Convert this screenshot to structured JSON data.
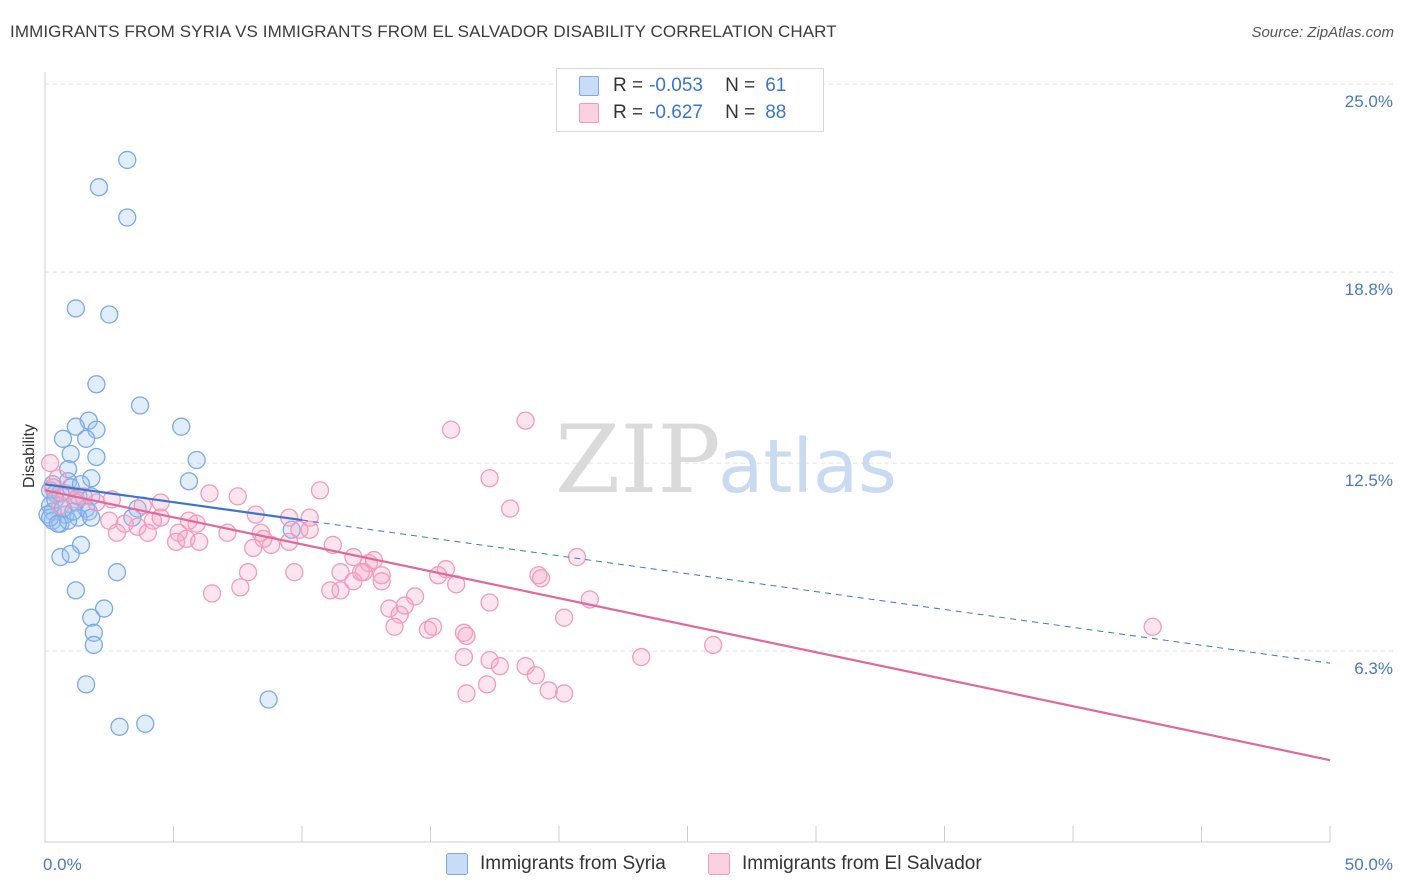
{
  "title": "IMMIGRANTS FROM SYRIA VS IMMIGRANTS FROM EL SALVADOR DISABILITY CORRELATION CHART",
  "source": "Source: ZipAtlas.com",
  "watermark": {
    "zip": "ZIP",
    "atlas": "atlas"
  },
  "legend": {
    "rows": [
      {
        "r_label": "R =",
        "r_value": "-0.053",
        "n_label": "N =",
        "n_value": "61",
        "color": "#7aaae8"
      },
      {
        "r_label": "R =",
        "r_value": "-0.627",
        "n_label": "N = ",
        "n_value": "88",
        "color": "#f19bbb"
      }
    ]
  },
  "chart_data": {
    "type": "scatter",
    "title": "IMMIGRANTS FROM SYRIA VS IMMIGRANTS FROM EL SALVADOR DISABILITY CORRELATION CHART",
    "xlabel": "",
    "ylabel": "Disability",
    "xlim": [
      0,
      50
    ],
    "ylim": [
      0,
      25.4
    ],
    "x_tick_labels": [
      "0.0%",
      "50.0%"
    ],
    "y_ticks": [
      6.3,
      12.5,
      18.8,
      25.0
    ],
    "y_tick_labels": [
      "6.3%",
      "12.5%",
      "18.8%",
      "25.0%"
    ],
    "grid": "horizontal dashed",
    "series": [
      {
        "name": "Immigrants from Syria",
        "color": "#7aaae8",
        "line_color": "#3b74d0",
        "trend": {
          "x0": 0,
          "y0": 11.8,
          "x1": 50,
          "y1": 5.9,
          "solid_until": 10
        },
        "points": [
          [
            3.2,
            22.5
          ],
          [
            2.1,
            21.6
          ],
          [
            3.2,
            20.6
          ],
          [
            1.2,
            17.6
          ],
          [
            2.5,
            17.4
          ],
          [
            2.0,
            15.1
          ],
          [
            3.7,
            14.4
          ],
          [
            1.7,
            13.9
          ],
          [
            1.2,
            13.7
          ],
          [
            2.0,
            13.6
          ],
          [
            5.3,
            13.7
          ],
          [
            0.7,
            13.3
          ],
          [
            1.6,
            13.3
          ],
          [
            1.0,
            12.8
          ],
          [
            2.0,
            12.7
          ],
          [
            5.9,
            12.6
          ],
          [
            0.9,
            12.3
          ],
          [
            1.8,
            12.0
          ],
          [
            5.6,
            11.9
          ],
          [
            0.3,
            11.8
          ],
          [
            0.9,
            11.9
          ],
          [
            1.0,
            11.7
          ],
          [
            0.2,
            11.6
          ],
          [
            0.4,
            11.5
          ],
          [
            1.3,
            11.4
          ],
          [
            1.8,
            11.4
          ],
          [
            0.6,
            11.5
          ],
          [
            1.2,
            11.2
          ],
          [
            0.2,
            11.1
          ],
          [
            1.6,
            11.0
          ],
          [
            3.6,
            11.0
          ],
          [
            0.3,
            10.9
          ],
          [
            0.8,
            10.8
          ],
          [
            1.7,
            10.9
          ],
          [
            0.1,
            10.8
          ],
          [
            0.3,
            10.6
          ],
          [
            1.3,
            10.7
          ],
          [
            1.8,
            10.7
          ],
          [
            0.6,
            10.5
          ],
          [
            0.9,
            10.6
          ],
          [
            0.2,
            10.7
          ],
          [
            0.5,
            10.5
          ],
          [
            3.4,
            10.7
          ],
          [
            9.6,
            10.3
          ],
          [
            1.4,
            9.8
          ],
          [
            0.6,
            9.4
          ],
          [
            1.0,
            9.5
          ],
          [
            2.8,
            8.9
          ],
          [
            1.2,
            8.3
          ],
          [
            2.3,
            7.7
          ],
          [
            1.8,
            7.4
          ],
          [
            1.9,
            6.9
          ],
          [
            1.9,
            6.5
          ],
          [
            1.6,
            5.2
          ],
          [
            8.7,
            4.7
          ],
          [
            3.9,
            3.9
          ],
          [
            2.9,
            3.8
          ],
          [
            0.4,
            11.3
          ],
          [
            1.4,
            11.8
          ],
          [
            0.7,
            11.0
          ],
          [
            1.1,
            10.9
          ]
        ]
      },
      {
        "name": "Immigrants from El Salvador",
        "color": "#f19bbb",
        "line_color": "#e0689a",
        "trend": {
          "x0": 0,
          "y0": 11.6,
          "x1": 50,
          "y1": 2.7
        },
        "points": [
          [
            0.2,
            12.5
          ],
          [
            0.5,
            12.0
          ],
          [
            0.3,
            11.7
          ],
          [
            0.8,
            11.5
          ],
          [
            1.2,
            11.3
          ],
          [
            1.5,
            11.4
          ],
          [
            2.0,
            11.2
          ],
          [
            0.6,
            11.1
          ],
          [
            2.6,
            11.3
          ],
          [
            3.8,
            11.1
          ],
          [
            4.5,
            11.2
          ],
          [
            6.4,
            11.5
          ],
          [
            7.5,
            11.4
          ],
          [
            10.7,
            11.6
          ],
          [
            8.2,
            10.8
          ],
          [
            9.5,
            10.7
          ],
          [
            10.3,
            10.7
          ],
          [
            5.6,
            10.6
          ],
          [
            4.2,
            10.6
          ],
          [
            3.6,
            10.4
          ],
          [
            2.5,
            10.6
          ],
          [
            3.1,
            10.5
          ],
          [
            4.5,
            10.7
          ],
          [
            5.9,
            10.5
          ],
          [
            7.1,
            10.2
          ],
          [
            8.4,
            10.2
          ],
          [
            9.9,
            10.3
          ],
          [
            5.2,
            10.2
          ],
          [
            4.0,
            10.2
          ],
          [
            2.8,
            10.2
          ],
          [
            5.1,
            9.9
          ],
          [
            5.5,
            10.0
          ],
          [
            6.0,
            9.9
          ],
          [
            8.1,
            9.7
          ],
          [
            8.8,
            9.8
          ],
          [
            9.5,
            9.9
          ],
          [
            8.5,
            10.0
          ],
          [
            10.3,
            10.3
          ],
          [
            11.2,
            9.8
          ],
          [
            12.0,
            9.4
          ],
          [
            12.6,
            9.2
          ],
          [
            12.8,
            9.3
          ],
          [
            12.4,
            8.9
          ],
          [
            13.1,
            8.8
          ],
          [
            11.5,
            8.9
          ],
          [
            9.7,
            8.9
          ],
          [
            7.9,
            8.9
          ],
          [
            15.6,
            9.0
          ],
          [
            15.3,
            8.8
          ],
          [
            11.5,
            8.3
          ],
          [
            11.1,
            8.3
          ],
          [
            12.0,
            8.6
          ],
          [
            12.3,
            8.9
          ],
          [
            13.1,
            8.6
          ],
          [
            14.4,
            8.1
          ],
          [
            16.0,
            8.5
          ],
          [
            7.6,
            8.4
          ],
          [
            6.5,
            8.2
          ],
          [
            13.4,
            7.7
          ],
          [
            13.8,
            7.5
          ],
          [
            14.0,
            7.8
          ],
          [
            17.3,
            7.9
          ],
          [
            19.2,
            8.8
          ],
          [
            20.7,
            9.4
          ],
          [
            19.3,
            8.7
          ],
          [
            21.2,
            8.0
          ],
          [
            20.2,
            7.4
          ],
          [
            13.6,
            7.1
          ],
          [
            14.9,
            7.0
          ],
          [
            15.1,
            7.1
          ],
          [
            16.3,
            6.9
          ],
          [
            16.4,
            6.8
          ],
          [
            16.3,
            6.1
          ],
          [
            17.3,
            6.0
          ],
          [
            17.7,
            5.8
          ],
          [
            18.7,
            5.8
          ],
          [
            16.4,
            4.9
          ],
          [
            17.2,
            5.2
          ],
          [
            19.1,
            5.5
          ],
          [
            19.6,
            5.0
          ],
          [
            20.2,
            4.9
          ],
          [
            23.2,
            6.1
          ],
          [
            26.0,
            6.5
          ],
          [
            43.1,
            7.1
          ],
          [
            15.8,
            13.6
          ],
          [
            18.7,
            13.9
          ],
          [
            17.3,
            12.0
          ],
          [
            18.1,
            11.0
          ]
        ]
      }
    ]
  },
  "bottom_legend": [
    {
      "label": "Immigrants from Syria",
      "color": "#7aaae8"
    },
    {
      "label": "Immigrants from El Salvador",
      "color": "#f19bbb"
    }
  ]
}
